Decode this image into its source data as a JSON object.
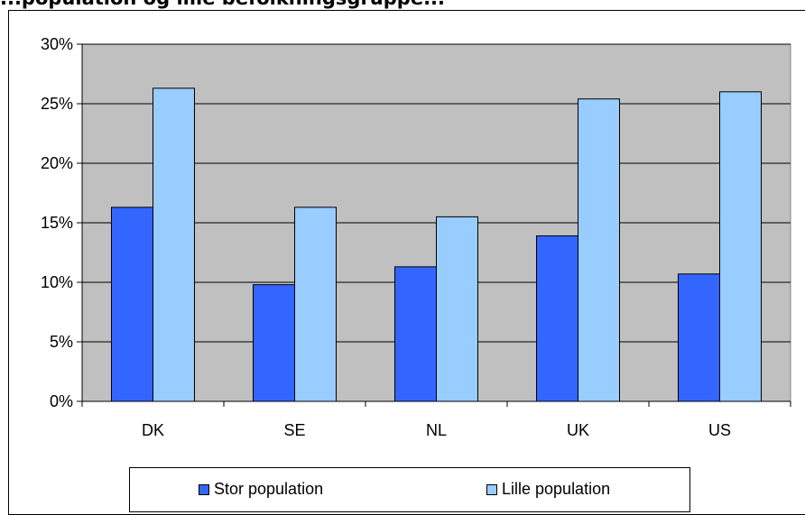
{
  "title": "...population og lille befolkningsgruppe...",
  "chart_data": {
    "type": "bar",
    "categories": [
      "DK",
      "SE",
      "NL",
      "UK",
      "US"
    ],
    "series": [
      {
        "name": "Stor population",
        "values": [
          16.3,
          9.8,
          11.3,
          13.9,
          10.7
        ],
        "color": "#3366ff"
      },
      {
        "name": "Lille population",
        "values": [
          26.3,
          16.3,
          15.5,
          25.4,
          26.0
        ],
        "color": "#99ccff"
      }
    ],
    "ylim": [
      0,
      30
    ],
    "yticks": [
      0,
      5,
      10,
      15,
      20,
      25,
      30
    ],
    "ytick_labels": [
      "0%",
      "5%",
      "10%",
      "15%",
      "20%",
      "25%",
      "30%"
    ],
    "plot_background": "#c0c0c0",
    "grid": true,
    "legend_position": "bottom"
  }
}
